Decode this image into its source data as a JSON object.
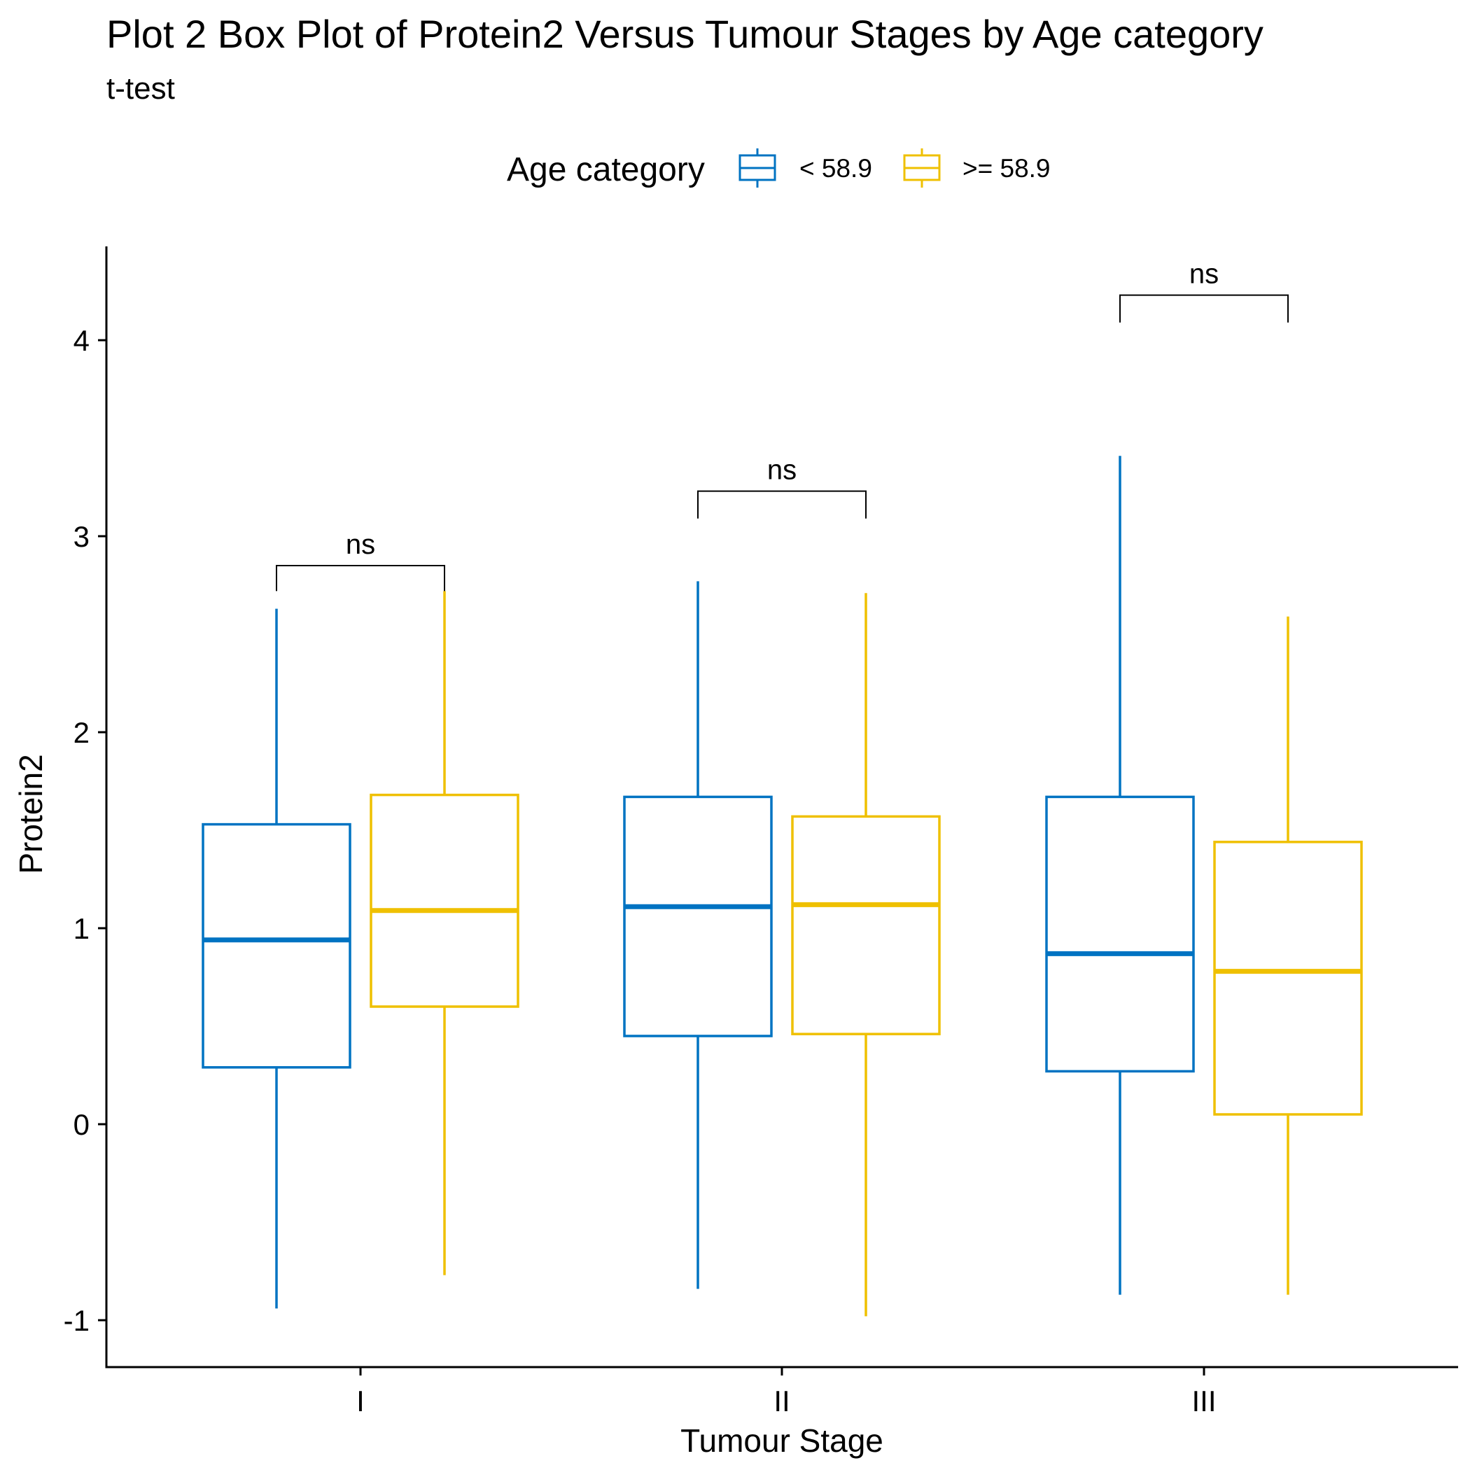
{
  "chart_data": {
    "type": "box",
    "title": "Plot 2  Box Plot of Protein2 Versus Tumour Stages by Age category",
    "subtitle": "t-test",
    "xlabel": "Tumour Stage",
    "ylabel": "Protein2",
    "categories": [
      "I",
      "II",
      "III"
    ],
    "ylim": [
      -1.2,
      4.45
    ],
    "yticks": [
      -1,
      0,
      1,
      2,
      3,
      4
    ],
    "ytick_labels": [
      "-1",
      "0",
      "1",
      "2",
      "3",
      "4"
    ],
    "grid": false,
    "legend": {
      "title": "Age category",
      "position": "top"
    },
    "series": [
      {
        "name": "< 58.9",
        "color": "#0073C2",
        "boxes": [
          {
            "min": -0.94,
            "q1": 0.29,
            "median": 0.94,
            "q3": 1.53,
            "max": 2.63
          },
          {
            "min": -0.84,
            "q1": 0.45,
            "median": 1.11,
            "q3": 1.67,
            "max": 2.77
          },
          {
            "min": -0.87,
            "q1": 0.27,
            "median": 0.87,
            "q3": 1.67,
            "max": 3.41
          }
        ]
      },
      {
        "name": ">= 58.9",
        "color": "#EFC000",
        "boxes": [
          {
            "min": -0.77,
            "q1": 0.6,
            "median": 1.09,
            "q3": 1.68,
            "max": 2.72
          },
          {
            "min": -0.98,
            "q1": 0.46,
            "median": 1.12,
            "q3": 1.57,
            "max": 2.71
          },
          {
            "min": -0.87,
            "q1": 0.05,
            "median": 0.78,
            "q3": 1.44,
            "max": 2.59
          }
        ]
      }
    ],
    "annotations": [
      {
        "category": "I",
        "label": "ns",
        "y": 2.85,
        "tick_bottom": 2.72
      },
      {
        "category": "II",
        "label": "ns",
        "y": 3.23,
        "tick_bottom": 3.09
      },
      {
        "category": "III",
        "label": "ns",
        "y": 4.23,
        "tick_bottom": 4.09
      }
    ]
  }
}
